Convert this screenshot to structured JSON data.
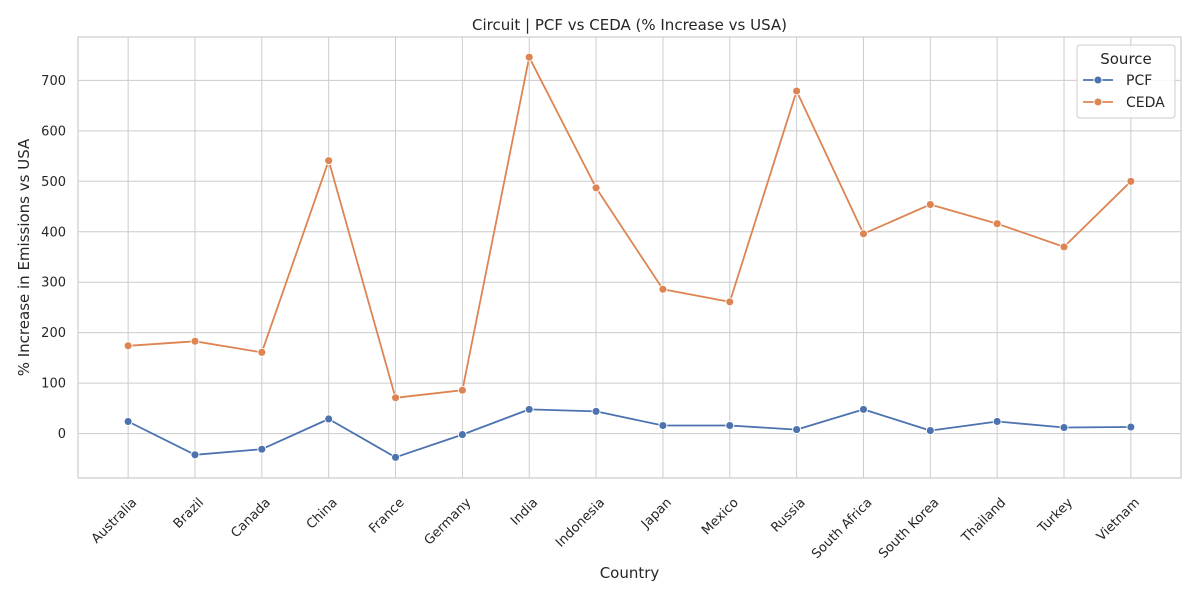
{
  "chart_data": {
    "type": "line",
    "title": "Circuit | PCF vs CEDA (% Increase vs USA)",
    "xlabel": "Country",
    "ylabel": "% Increase in Emissions vs USA",
    "categories": [
      "Australia",
      "Brazil",
      "Canada",
      "China",
      "France",
      "Germany",
      "India",
      "Indonesia",
      "Japan",
      "Mexico",
      "Russia",
      "South Africa",
      "South Korea",
      "Thailand",
      "Turkey",
      "Vietnam"
    ],
    "ylim": [
      -88,
      786
    ],
    "yticks": [
      0,
      100,
      200,
      300,
      400,
      500,
      600,
      700
    ],
    "grid": true,
    "legend": {
      "title": "Source",
      "placement": "top-right"
    },
    "series": [
      {
        "name": "PCF",
        "color": "#4c72b0",
        "values": [
          24,
          -42,
          -31,
          29,
          -47,
          -2,
          48,
          44,
          16,
          16,
          8,
          48,
          6,
          24,
          12,
          13
        ]
      },
      {
        "name": "CEDA",
        "color": "#dd8452",
        "values": [
          174,
          183,
          161,
          541,
          71,
          86,
          746,
          487,
          286,
          261,
          679,
          396,
          454,
          416,
          370,
          500
        ]
      }
    ]
  }
}
